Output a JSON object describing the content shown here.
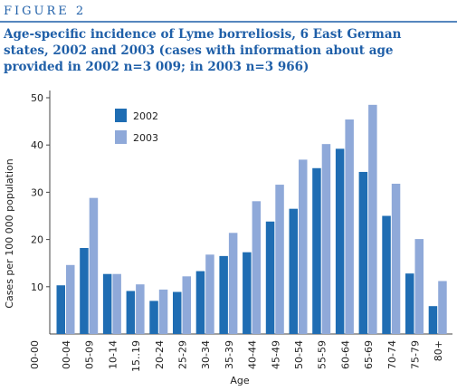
{
  "header": {
    "label": "Figure 2"
  },
  "chart_data": {
    "type": "bar",
    "title": [
      "Age-specific incidence of Lyme borreliosis, 6 East German",
      "states, 2002 and 2003 (cases with information about age",
      "provided in 2002 n=3 009; in 2003 n=3 966)"
    ],
    "xlabel": "Age",
    "ylabel": "Cases per 100 000 population",
    "categories": [
      "00-00",
      "00-04",
      "05-09",
      "10-14",
      "15..19",
      "20-24",
      "25-29",
      "30-34",
      "35-39",
      "40-44",
      "45-49",
      "50-54",
      "55-59",
      "60-64",
      "65-69",
      "70-74",
      "75-79",
      "80+"
    ],
    "series": [
      {
        "name": "2002",
        "color": "#1f6db3",
        "values": [
          null,
          10.3,
          18.2,
          12.7,
          9.1,
          7.0,
          8.9,
          13.3,
          16.5,
          17.3,
          23.8,
          26.5,
          35.1,
          39.2,
          34.3,
          25.0,
          12.8,
          5.9
        ]
      },
      {
        "name": "2003",
        "color": "#8fa9d9",
        "values": [
          null,
          14.6,
          28.8,
          12.7,
          10.5,
          9.4,
          12.2,
          16.8,
          21.4,
          28.1,
          31.6,
          36.9,
          40.2,
          45.4,
          48.5,
          31.8,
          20.1,
          11.2
        ]
      }
    ],
    "ylim": [
      0,
      50
    ],
    "yticks": [
      10,
      20,
      30,
      40,
      50
    ],
    "grid": false
  }
}
